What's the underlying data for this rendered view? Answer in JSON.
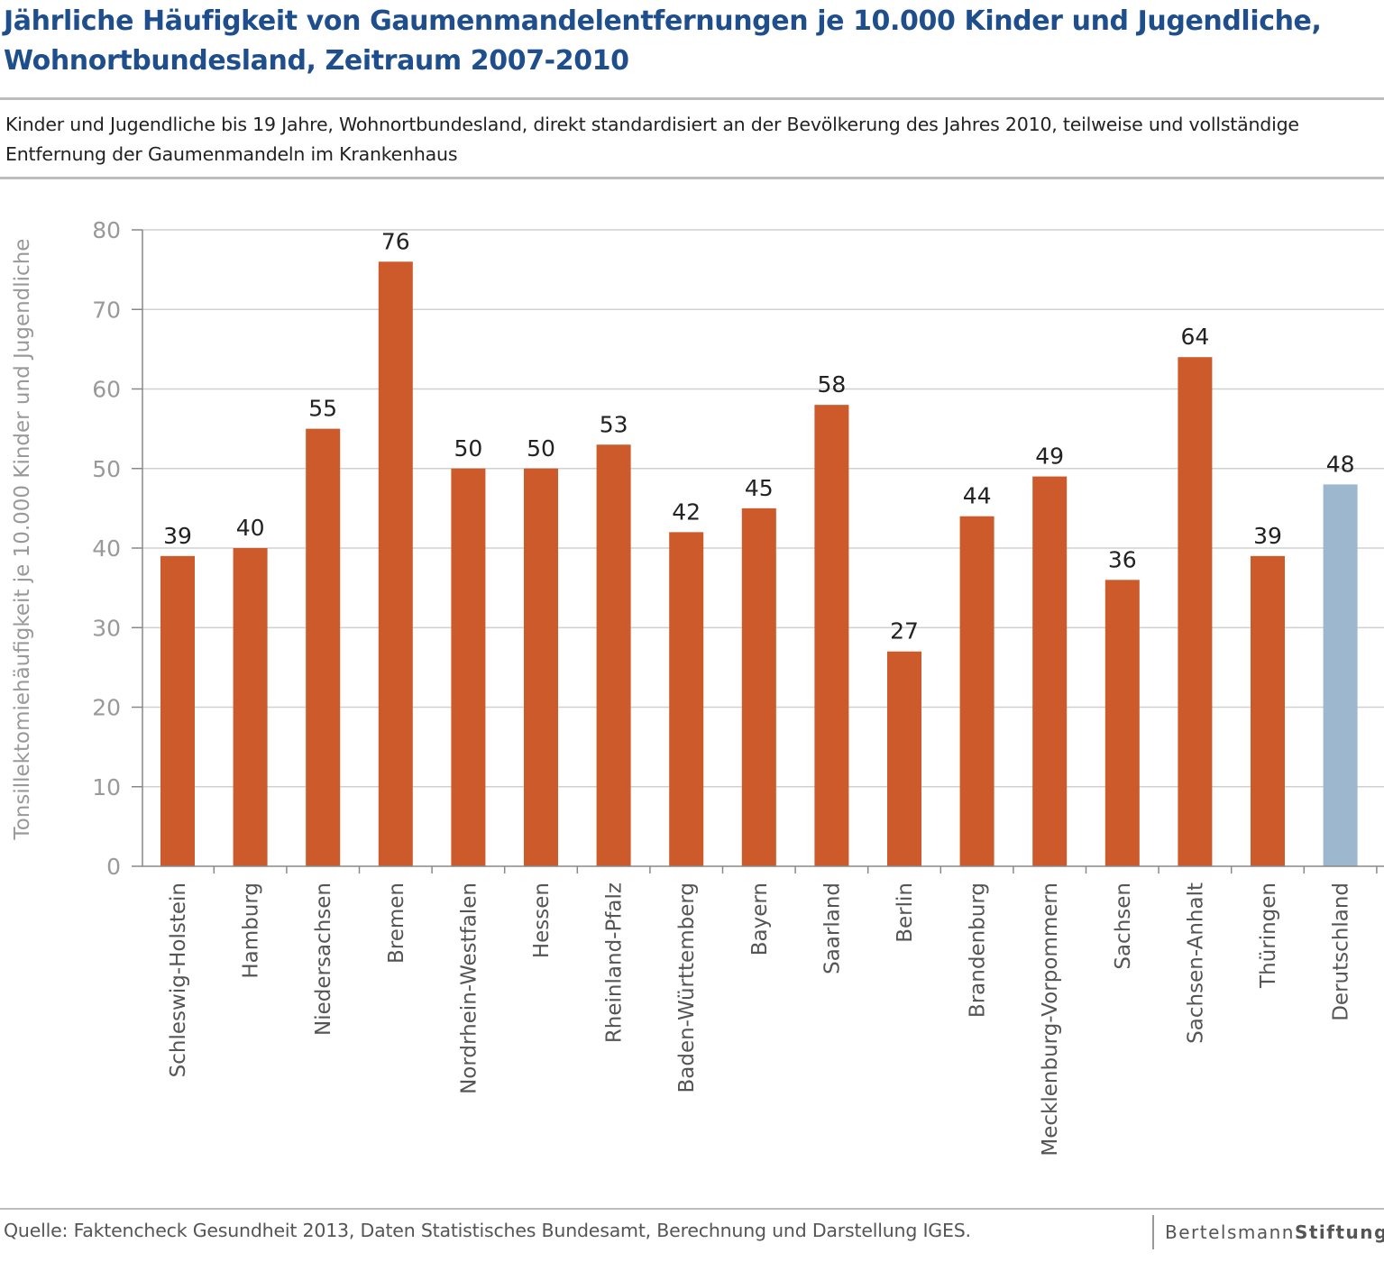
{
  "header": {
    "title": "Jährliche Häufigkeit von Gaumenmandelentfernungen je 10.000 Kinder und Jugendliche, Wohnortbundesland, Zeitraum 2007-2010",
    "subtitle": "Kinder und Jugendliche bis 19 Jahre, Wohnortbundesland, direkt standardisiert an der Bevölkerung des Jahres 2010, teilweise und vollständige Entfernung der Gaumenmandeln im Krankenhaus"
  },
  "footer": {
    "source": "Quelle: Faktencheck Gesundheit 2013, Daten Statistisches Bundesamt, Berechnung und Darstellung IGES.",
    "logo_part1": "Bertelsmann",
    "logo_part2": "Stiftung"
  },
  "colors": {
    "bar": "#cd5a2a",
    "highlight": "#9db7cf",
    "grid": "#d0d0d0",
    "axis": "#888888"
  },
  "chart_data": {
    "type": "bar",
    "title": "Jährliche Häufigkeit von Gaumenmandelentfernungen je 10.000 Kinder und Jugendliche, Wohnortbundesland, Zeitraum 2007-2010",
    "ylabel": "Tonsillektomiehäufigkeit je 10.000 Kinder und Jugendliche",
    "xlabel": "",
    "ylim": [
      0,
      80
    ],
    "yticks": [
      0,
      10,
      20,
      30,
      40,
      50,
      60,
      70,
      80
    ],
    "grid": true,
    "categories": [
      "Schleswig-Holstein",
      "Hamburg",
      "Niedersachsen",
      "Bremen",
      "Nordrhein-Westfalen",
      "Hessen",
      "Rheinland-Pfalz",
      "Baden-Württemberg",
      "Bayern",
      "Saarland",
      "Berlin",
      "Brandenburg",
      "Mecklenburg-Vorpommern",
      "Sachsen",
      "Sachsen-Anhalt",
      "Thüringen",
      "Derutschland"
    ],
    "values": [
      39,
      40,
      55,
      76,
      50,
      50,
      53,
      42,
      45,
      58,
      27,
      44,
      49,
      36,
      64,
      39,
      48
    ],
    "highlight_category": "Derutschland"
  }
}
